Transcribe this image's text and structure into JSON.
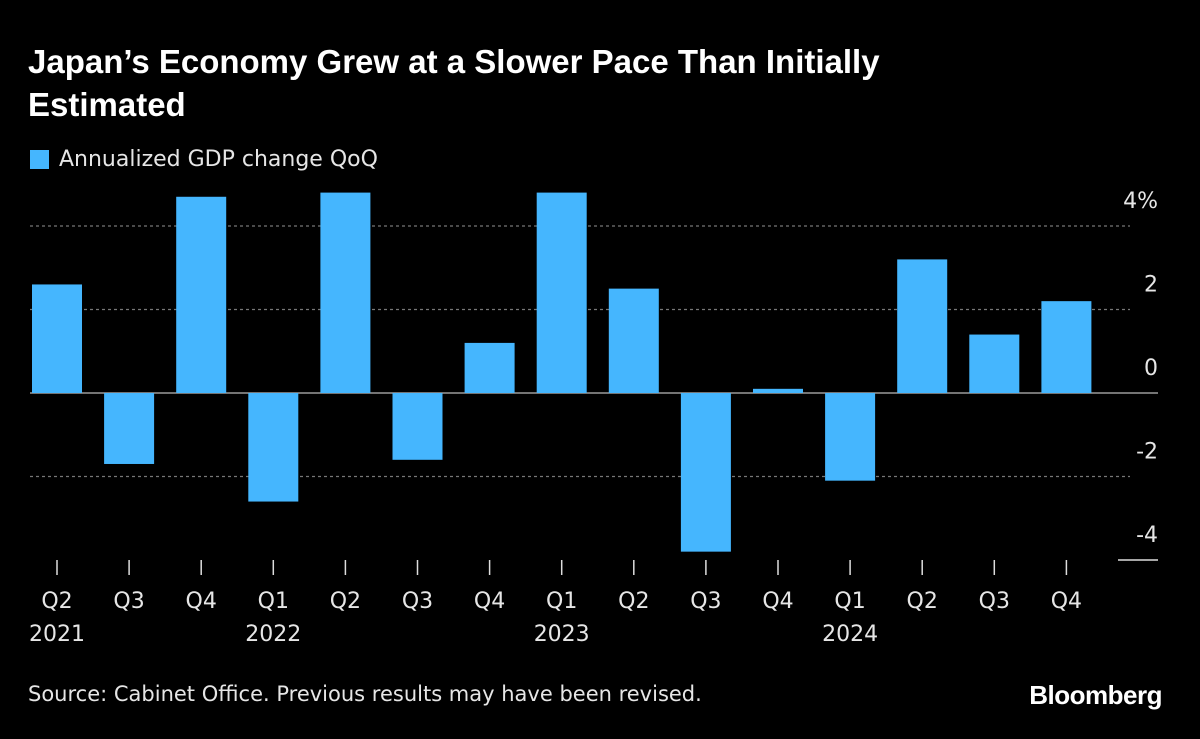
{
  "chart_data": {
    "type": "bar",
    "title": "Japan’s Economy Grew at a Slower Pace Than Initially Estimated",
    "categories": [
      "Q2 2021",
      "Q3 2021",
      "Q4 2021",
      "Q1 2022",
      "Q2 2022",
      "Q3 2022",
      "Q4 2022",
      "Q1 2023",
      "Q2 2023",
      "Q3 2023",
      "Q4 2023",
      "Q1 2024",
      "Q2 2024",
      "Q3 2024",
      "Q4 2024"
    ],
    "quarter_labels": [
      "Q2",
      "Q3",
      "Q4",
      "Q1",
      "Q2",
      "Q3",
      "Q4",
      "Q1",
      "Q2",
      "Q3",
      "Q4",
      "Q1",
      "Q2",
      "Q3",
      "Q4"
    ],
    "year_labels": [
      {
        "index": 0,
        "label": "2021"
      },
      {
        "index": 3,
        "label": "2022"
      },
      {
        "index": 7,
        "label": "2023"
      },
      {
        "index": 11,
        "label": "2024"
      }
    ],
    "series": [
      {
        "name": "Annualized GDP change QoQ",
        "color": "#45b6fe",
        "values": [
          2.6,
          -1.7,
          4.7,
          -2.6,
          4.8,
          -1.6,
          1.2,
          4.8,
          2.5,
          -3.8,
          0.1,
          -2.1,
          3.2,
          1.4,
          2.2
        ]
      }
    ],
    "ylim": [
      -4,
      4
    ],
    "yticks": [
      {
        "value": 4,
        "label": "4%"
      },
      {
        "value": 2,
        "label": "2"
      },
      {
        "value": 0,
        "label": "0"
      },
      {
        "value": -2,
        "label": "-2"
      },
      {
        "value": -4,
        "label": "-4"
      }
    ],
    "grid": true,
    "legend_position": "top-left"
  },
  "source": "Source: Cabinet Office. Previous results may have been revised.",
  "brand": "Bloomberg"
}
